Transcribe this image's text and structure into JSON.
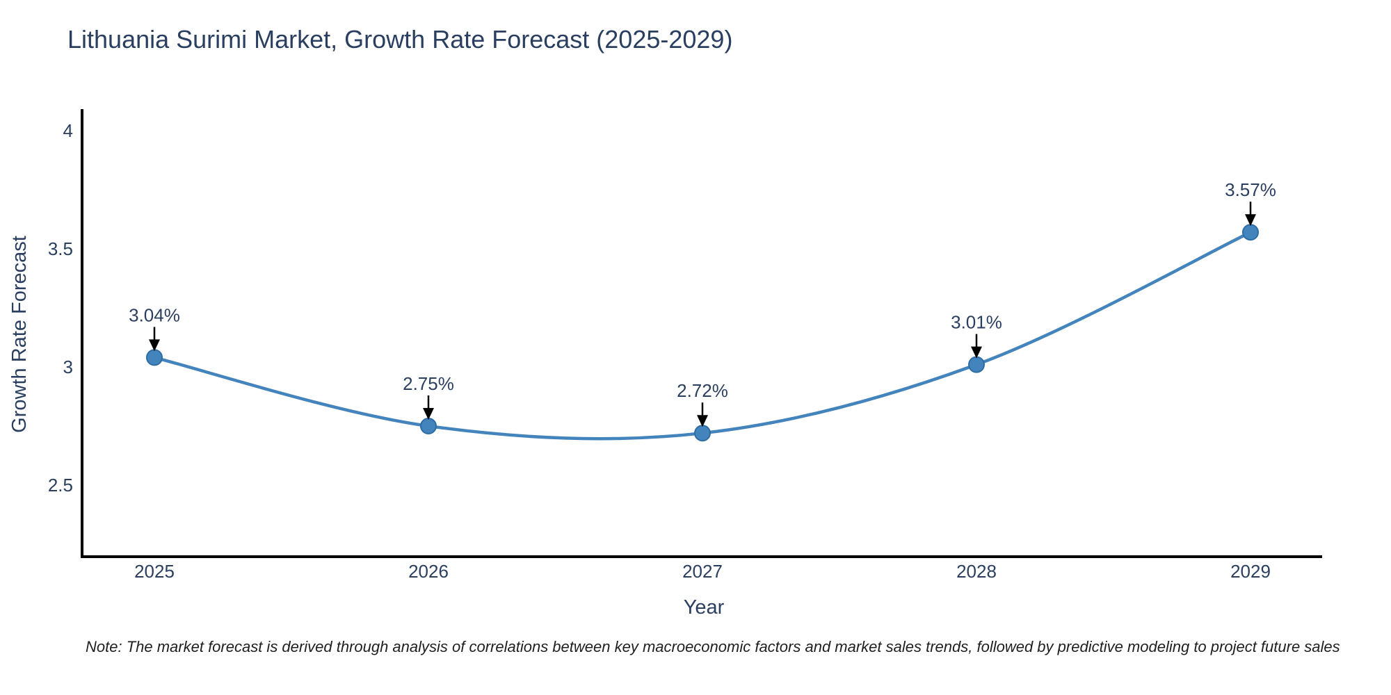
{
  "page": {
    "note": "Note: The market forecast is derived through analysis of correlations between key macroeconomic factors and market sales trends, followed by predictive modeling to project future sales"
  },
  "chart_data": {
    "type": "line",
    "title": "Lithuania Surimi Market, Growth Rate Forecast (2025-2029)",
    "xlabel": "Year",
    "ylabel": "Growth Rate Forecast",
    "categories": [
      "2025",
      "2026",
      "2027",
      "2028",
      "2029"
    ],
    "values": [
      3.04,
      2.75,
      2.72,
      3.01,
      3.57
    ],
    "point_labels": [
      "3.04%",
      "2.75%",
      "2.72%",
      "3.01%",
      "3.57%"
    ],
    "ytick_labels": [
      "2.5",
      "3",
      "3.5",
      "4"
    ],
    "ytick_values": [
      2.5,
      3.0,
      3.5,
      4.0
    ],
    "ylim": [
      2.2,
      4.08
    ],
    "grid": false,
    "legend_position": "none",
    "smooth": true,
    "annotation_style": "downward-arrow",
    "colors": {
      "line": "#4484bd",
      "marker_fill": "#4484bd",
      "marker_edge": "#2e6da4",
      "axis": "#000000",
      "arrow": "#000000",
      "text": "#2a3f5f"
    }
  }
}
